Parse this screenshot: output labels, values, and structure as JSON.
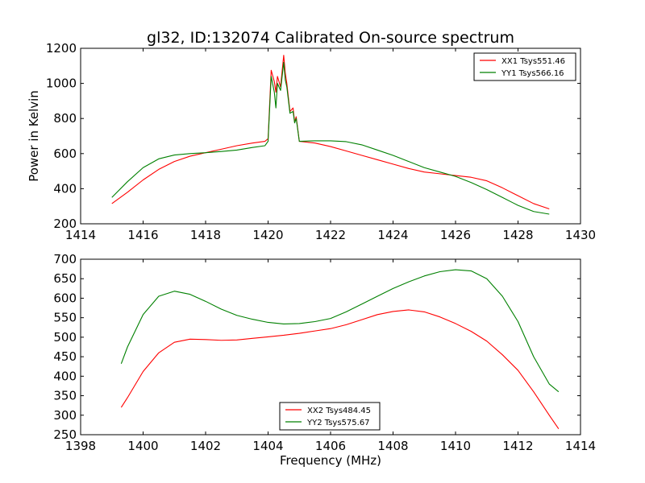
{
  "title": "gl32, ID:132074 Calibrated On-source spectrum",
  "chart_data": [
    {
      "type": "line",
      "ylabel": "Power in Kelvin",
      "xlabel": "",
      "xlim": [
        1414,
        1430
      ],
      "ylim": [
        200,
        1200
      ],
      "xticks": [
        "1414",
        "1416",
        "1418",
        "1420",
        "1422",
        "1424",
        "1426",
        "1428",
        "1430"
      ],
      "yticks": [
        "200",
        "400",
        "600",
        "800",
        "1000",
        "1200"
      ],
      "legend_position": "top-right",
      "grid": false,
      "series": [
        {
          "name": "XX1 Tsys551.46",
          "color": "#ff0000",
          "x": [
            1415,
            1415.5,
            1416,
            1416.5,
            1417,
            1417.5,
            1418,
            1418.5,
            1419,
            1419.5,
            1419.9,
            1420.0,
            1420.1,
            1420.2,
            1420.25,
            1420.3,
            1420.4,
            1420.5,
            1420.55,
            1420.6,
            1420.7,
            1420.8,
            1420.85,
            1420.9,
            1421.0,
            1421.5,
            1422,
            1422.5,
            1423,
            1423.5,
            1424,
            1424.5,
            1425,
            1425.5,
            1426,
            1426.5,
            1427,
            1427.5,
            1428,
            1428.5,
            1429
          ],
          "y": [
            315,
            380,
            450,
            510,
            555,
            585,
            605,
            625,
            645,
            660,
            670,
            685,
            1075,
            1010,
            950,
            1040,
            980,
            1160,
            1060,
            1000,
            840,
            860,
            780,
            810,
            670,
            660,
            640,
            615,
            590,
            565,
            540,
            515,
            495,
            485,
            475,
            465,
            445,
            405,
            360,
            315,
            285
          ]
        },
        {
          "name": "YY1 Tsys566.16",
          "color": "#008000",
          "x": [
            1415,
            1415.5,
            1416,
            1416.5,
            1417,
            1417.5,
            1418,
            1418.5,
            1419,
            1419.5,
            1419.9,
            1420.0,
            1420.1,
            1420.2,
            1420.25,
            1420.3,
            1420.4,
            1420.5,
            1420.55,
            1420.6,
            1420.7,
            1420.8,
            1420.85,
            1420.9,
            1421.0,
            1421.5,
            1422,
            1422.5,
            1423,
            1423.5,
            1424,
            1424.5,
            1425,
            1425.5,
            1426,
            1426.5,
            1427,
            1427.5,
            1428,
            1428.5,
            1429
          ],
          "y": [
            350,
            440,
            520,
            570,
            592,
            600,
            605,
            612,
            620,
            635,
            645,
            670,
            1040,
            950,
            860,
            1000,
            960,
            1120,
            1020,
            980,
            830,
            840,
            775,
            800,
            670,
            673,
            673,
            668,
            650,
            620,
            590,
            555,
            520,
            495,
            470,
            435,
            395,
            350,
            305,
            270,
            255
          ]
        }
      ]
    },
    {
      "type": "line",
      "ylabel": "",
      "xlabel": "Frequency (MHz)",
      "xlim": [
        1398,
        1414
      ],
      "ylim": [
        250,
        700
      ],
      "xticks": [
        "1398",
        "1400",
        "1402",
        "1404",
        "1406",
        "1408",
        "1410",
        "1412",
        "1414"
      ],
      "yticks": [
        "250",
        "300",
        "350",
        "400",
        "450",
        "500",
        "550",
        "600",
        "650",
        "700"
      ],
      "legend_position": "bottom-center",
      "grid": false,
      "series": [
        {
          "name": "XX2 Tsys484.45",
          "color": "#ff0000",
          "x": [
            1399.3,
            1399.5,
            1400,
            1400.5,
            1401,
            1401.5,
            1402,
            1402.5,
            1403,
            1403.5,
            1404,
            1404.5,
            1405,
            1405.5,
            1406,
            1406.5,
            1407,
            1407.5,
            1408,
            1408.5,
            1409,
            1409.5,
            1410,
            1410.5,
            1411,
            1411.5,
            1412,
            1412.5,
            1413,
            1413.3
          ],
          "y": [
            320,
            345,
            412,
            460,
            487,
            495,
            494,
            492,
            493,
            497,
            501,
            505,
            510,
            516,
            522,
            532,
            545,
            558,
            566,
            570,
            565,
            552,
            535,
            515,
            490,
            455,
            415,
            360,
            300,
            265
          ]
        },
        {
          "name": "YY2 Tsys575.67",
          "color": "#008000",
          "x": [
            1399.3,
            1399.5,
            1400,
            1400.5,
            1401,
            1401.5,
            1402,
            1402.5,
            1403,
            1403.5,
            1404,
            1404.5,
            1405,
            1405.5,
            1406,
            1406.5,
            1407,
            1407.5,
            1408,
            1408.5,
            1409,
            1409.5,
            1410,
            1410.5,
            1411,
            1411.5,
            1412,
            1412.5,
            1413,
            1413.3
          ],
          "y": [
            432,
            475,
            558,
            605,
            618,
            610,
            592,
            572,
            556,
            546,
            538,
            534,
            535,
            540,
            548,
            565,
            585,
            605,
            625,
            642,
            657,
            668,
            673,
            670,
            650,
            605,
            540,
            450,
            380,
            360
          ]
        }
      ]
    }
  ]
}
